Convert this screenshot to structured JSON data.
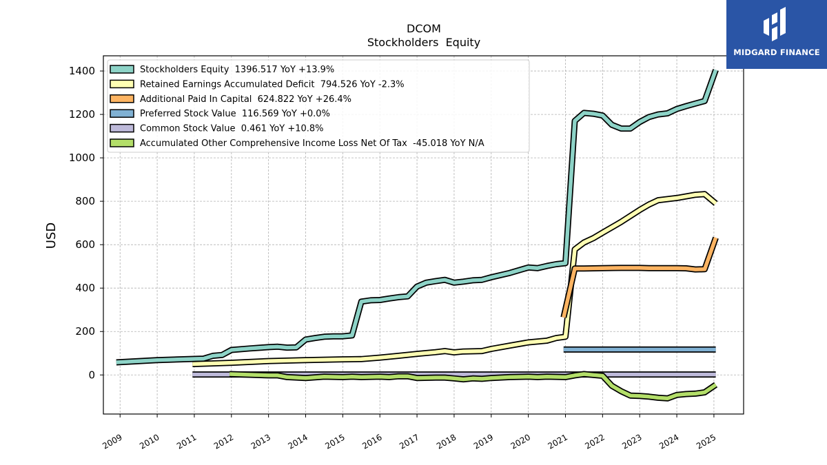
{
  "brand": {
    "name": "MIDGARD FINANCE",
    "color": "#2a55a6"
  },
  "chart_data": {
    "type": "line",
    "title": "DCOM",
    "subtitle": "Stockholders  Equity",
    "ylabel": "USD",
    "xlabel": "",
    "ylim": [
      -180,
      1470
    ],
    "xlim": [
      2008.55,
      2025.8
    ],
    "yticks": [
      0,
      200,
      400,
      600,
      800,
      1000,
      1200,
      1400
    ],
    "xticks": [
      "2009",
      "2010",
      "2011",
      "2012",
      "2013",
      "2014",
      "2015",
      "2016",
      "2017",
      "2018",
      "2019",
      "2020",
      "2021",
      "2022",
      "2023",
      "2024",
      "2025"
    ],
    "grid": true,
    "legend_position": "top-left",
    "series": [
      {
        "name": "Stockholders Equity",
        "legend": "Stockholders Equity  1396.517 YoY +13.9%",
        "color": "#8dd3c7",
        "points": [
          [
            2008.9,
            58
          ],
          [
            2010.0,
            68
          ],
          [
            2011.0,
            74
          ],
          [
            2011.25,
            75
          ],
          [
            2011.5,
            88
          ],
          [
            2011.75,
            92
          ],
          [
            2012.0,
            115
          ],
          [
            2012.5,
            122
          ],
          [
            2013.0,
            128
          ],
          [
            2013.25,
            130
          ],
          [
            2013.5,
            126
          ],
          [
            2013.75,
            127
          ],
          [
            2014.0,
            163
          ],
          [
            2014.25,
            170
          ],
          [
            2014.5,
            176
          ],
          [
            2014.75,
            178
          ],
          [
            2015.0,
            178
          ],
          [
            2015.25,
            182
          ],
          [
            2015.5,
            338
          ],
          [
            2015.75,
            344
          ],
          [
            2016.0,
            345
          ],
          [
            2016.25,
            352
          ],
          [
            2016.5,
            358
          ],
          [
            2016.75,
            362
          ],
          [
            2017.0,
            407
          ],
          [
            2017.25,
            425
          ],
          [
            2017.5,
            432
          ],
          [
            2017.75,
            438
          ],
          [
            2018.0,
            425
          ],
          [
            2018.25,
            430
          ],
          [
            2018.5,
            436
          ],
          [
            2018.75,
            438
          ],
          [
            2019.0,
            450
          ],
          [
            2019.5,
            470
          ],
          [
            2020.0,
            495
          ],
          [
            2020.25,
            492
          ],
          [
            2020.5,
            502
          ],
          [
            2020.75,
            510
          ],
          [
            2021.0,
            515
          ],
          [
            2021.25,
            1170
          ],
          [
            2021.5,
            1207
          ],
          [
            2021.75,
            1203
          ],
          [
            2022.0,
            1195
          ],
          [
            2022.25,
            1152
          ],
          [
            2022.5,
            1135
          ],
          [
            2022.75,
            1135
          ],
          [
            2023.0,
            1165
          ],
          [
            2023.25,
            1188
          ],
          [
            2023.5,
            1200
          ],
          [
            2023.75,
            1205
          ],
          [
            2024.0,
            1225
          ],
          [
            2024.25,
            1238
          ],
          [
            2024.5,
            1250
          ],
          [
            2024.75,
            1262
          ],
          [
            2025.05,
            1405
          ]
        ]
      },
      {
        "name": "Retained Earnings Accumulated Deficit",
        "legend": "Retained Earnings Accumulated Deficit  794.526 YoY -2.3%",
        "color": "#ffffb3",
        "points": [
          [
            2010.95,
            50
          ],
          [
            2012.0,
            56
          ],
          [
            2013.0,
            64
          ],
          [
            2014.0,
            68
          ],
          [
            2015.0,
            72
          ],
          [
            2015.5,
            73
          ],
          [
            2016.0,
            80
          ],
          [
            2016.5,
            88
          ],
          [
            2017.0,
            97
          ],
          [
            2017.5,
            105
          ],
          [
            2017.75,
            110
          ],
          [
            2018.0,
            104
          ],
          [
            2018.25,
            108
          ],
          [
            2018.75,
            110
          ],
          [
            2019.0,
            120
          ],
          [
            2019.5,
            135
          ],
          [
            2020.0,
            150
          ],
          [
            2020.5,
            158
          ],
          [
            2020.75,
            170
          ],
          [
            2021.0,
            176
          ],
          [
            2021.25,
            578
          ],
          [
            2021.5,
            610
          ],
          [
            2021.75,
            630
          ],
          [
            2022.0,
            655
          ],
          [
            2022.5,
            705
          ],
          [
            2023.0,
            760
          ],
          [
            2023.25,
            785
          ],
          [
            2023.5,
            805
          ],
          [
            2023.75,
            810
          ],
          [
            2024.0,
            815
          ],
          [
            2024.5,
            830
          ],
          [
            2024.75,
            833
          ],
          [
            2025.05,
            790
          ]
        ]
      },
      {
        "name": "Additional Paid In Capital",
        "legend": "Additional Paid In Capital  624.822 YoY +26.4%",
        "color": "#fdb462",
        "points": [
          [
            2020.95,
            265
          ],
          [
            2021.25,
            490
          ],
          [
            2021.5,
            490
          ],
          [
            2022.0,
            492
          ],
          [
            2022.5,
            493
          ],
          [
            2023.0,
            493
          ],
          [
            2023.25,
            492
          ],
          [
            2023.75,
            492
          ],
          [
            2024.0,
            492
          ],
          [
            2024.25,
            491
          ],
          [
            2024.5,
            486
          ],
          [
            2024.75,
            487
          ],
          [
            2025.05,
            632
          ]
        ]
      },
      {
        "name": "Preferred Stock Value",
        "legend": "Preferred Stock Value  116.569 YoY +0.0%",
        "color": "#80b1d3",
        "points": [
          [
            2020.95,
            117
          ],
          [
            2025.05,
            117
          ]
        ]
      },
      {
        "name": "Common Stock Value",
        "legend": "Common Stock Value  0.461 YoY +10.8%",
        "color": "#bebada",
        "points": [
          [
            2010.95,
            2
          ],
          [
            2025.05,
            2
          ]
        ]
      },
      {
        "name": "Accumulated Other Comprehensive Income Loss Net Of Tax",
        "legend": "Accumulated Other Comprehensive Income Loss Net Of Tax  -45.018 YoY N/A",
        "color": "#b3de69",
        "points": [
          [
            2011.95,
            4
          ],
          [
            2013.0,
            -2
          ],
          [
            2013.25,
            -2
          ],
          [
            2013.5,
            -10
          ],
          [
            2014.0,
            -14
          ],
          [
            2014.5,
            -8
          ],
          [
            2015.0,
            -10
          ],
          [
            2015.25,
            -8
          ],
          [
            2015.5,
            -10
          ],
          [
            2016.0,
            -8
          ],
          [
            2016.25,
            -10
          ],
          [
            2016.5,
            -6
          ],
          [
            2016.75,
            -6
          ],
          [
            2017.0,
            -14
          ],
          [
            2017.5,
            -12
          ],
          [
            2017.75,
            -12
          ],
          [
            2018.0,
            -16
          ],
          [
            2018.25,
            -20
          ],
          [
            2018.5,
            -16
          ],
          [
            2018.75,
            -18
          ],
          [
            2019.0,
            -14
          ],
          [
            2019.5,
            -10
          ],
          [
            2020.0,
            -8
          ],
          [
            2020.25,
            -10
          ],
          [
            2020.5,
            -8
          ],
          [
            2021.0,
            -10
          ],
          [
            2021.25,
            -2
          ],
          [
            2021.5,
            4
          ],
          [
            2021.75,
            0
          ],
          [
            2022.0,
            -4
          ],
          [
            2022.25,
            -50
          ],
          [
            2022.5,
            -75
          ],
          [
            2022.75,
            -95
          ],
          [
            2023.0,
            -97
          ],
          [
            2023.25,
            -100
          ],
          [
            2023.5,
            -105
          ],
          [
            2023.75,
            -108
          ],
          [
            2024.0,
            -92
          ],
          [
            2024.25,
            -88
          ],
          [
            2024.5,
            -86
          ],
          [
            2024.75,
            -80
          ],
          [
            2025.05,
            -45
          ]
        ]
      }
    ]
  }
}
